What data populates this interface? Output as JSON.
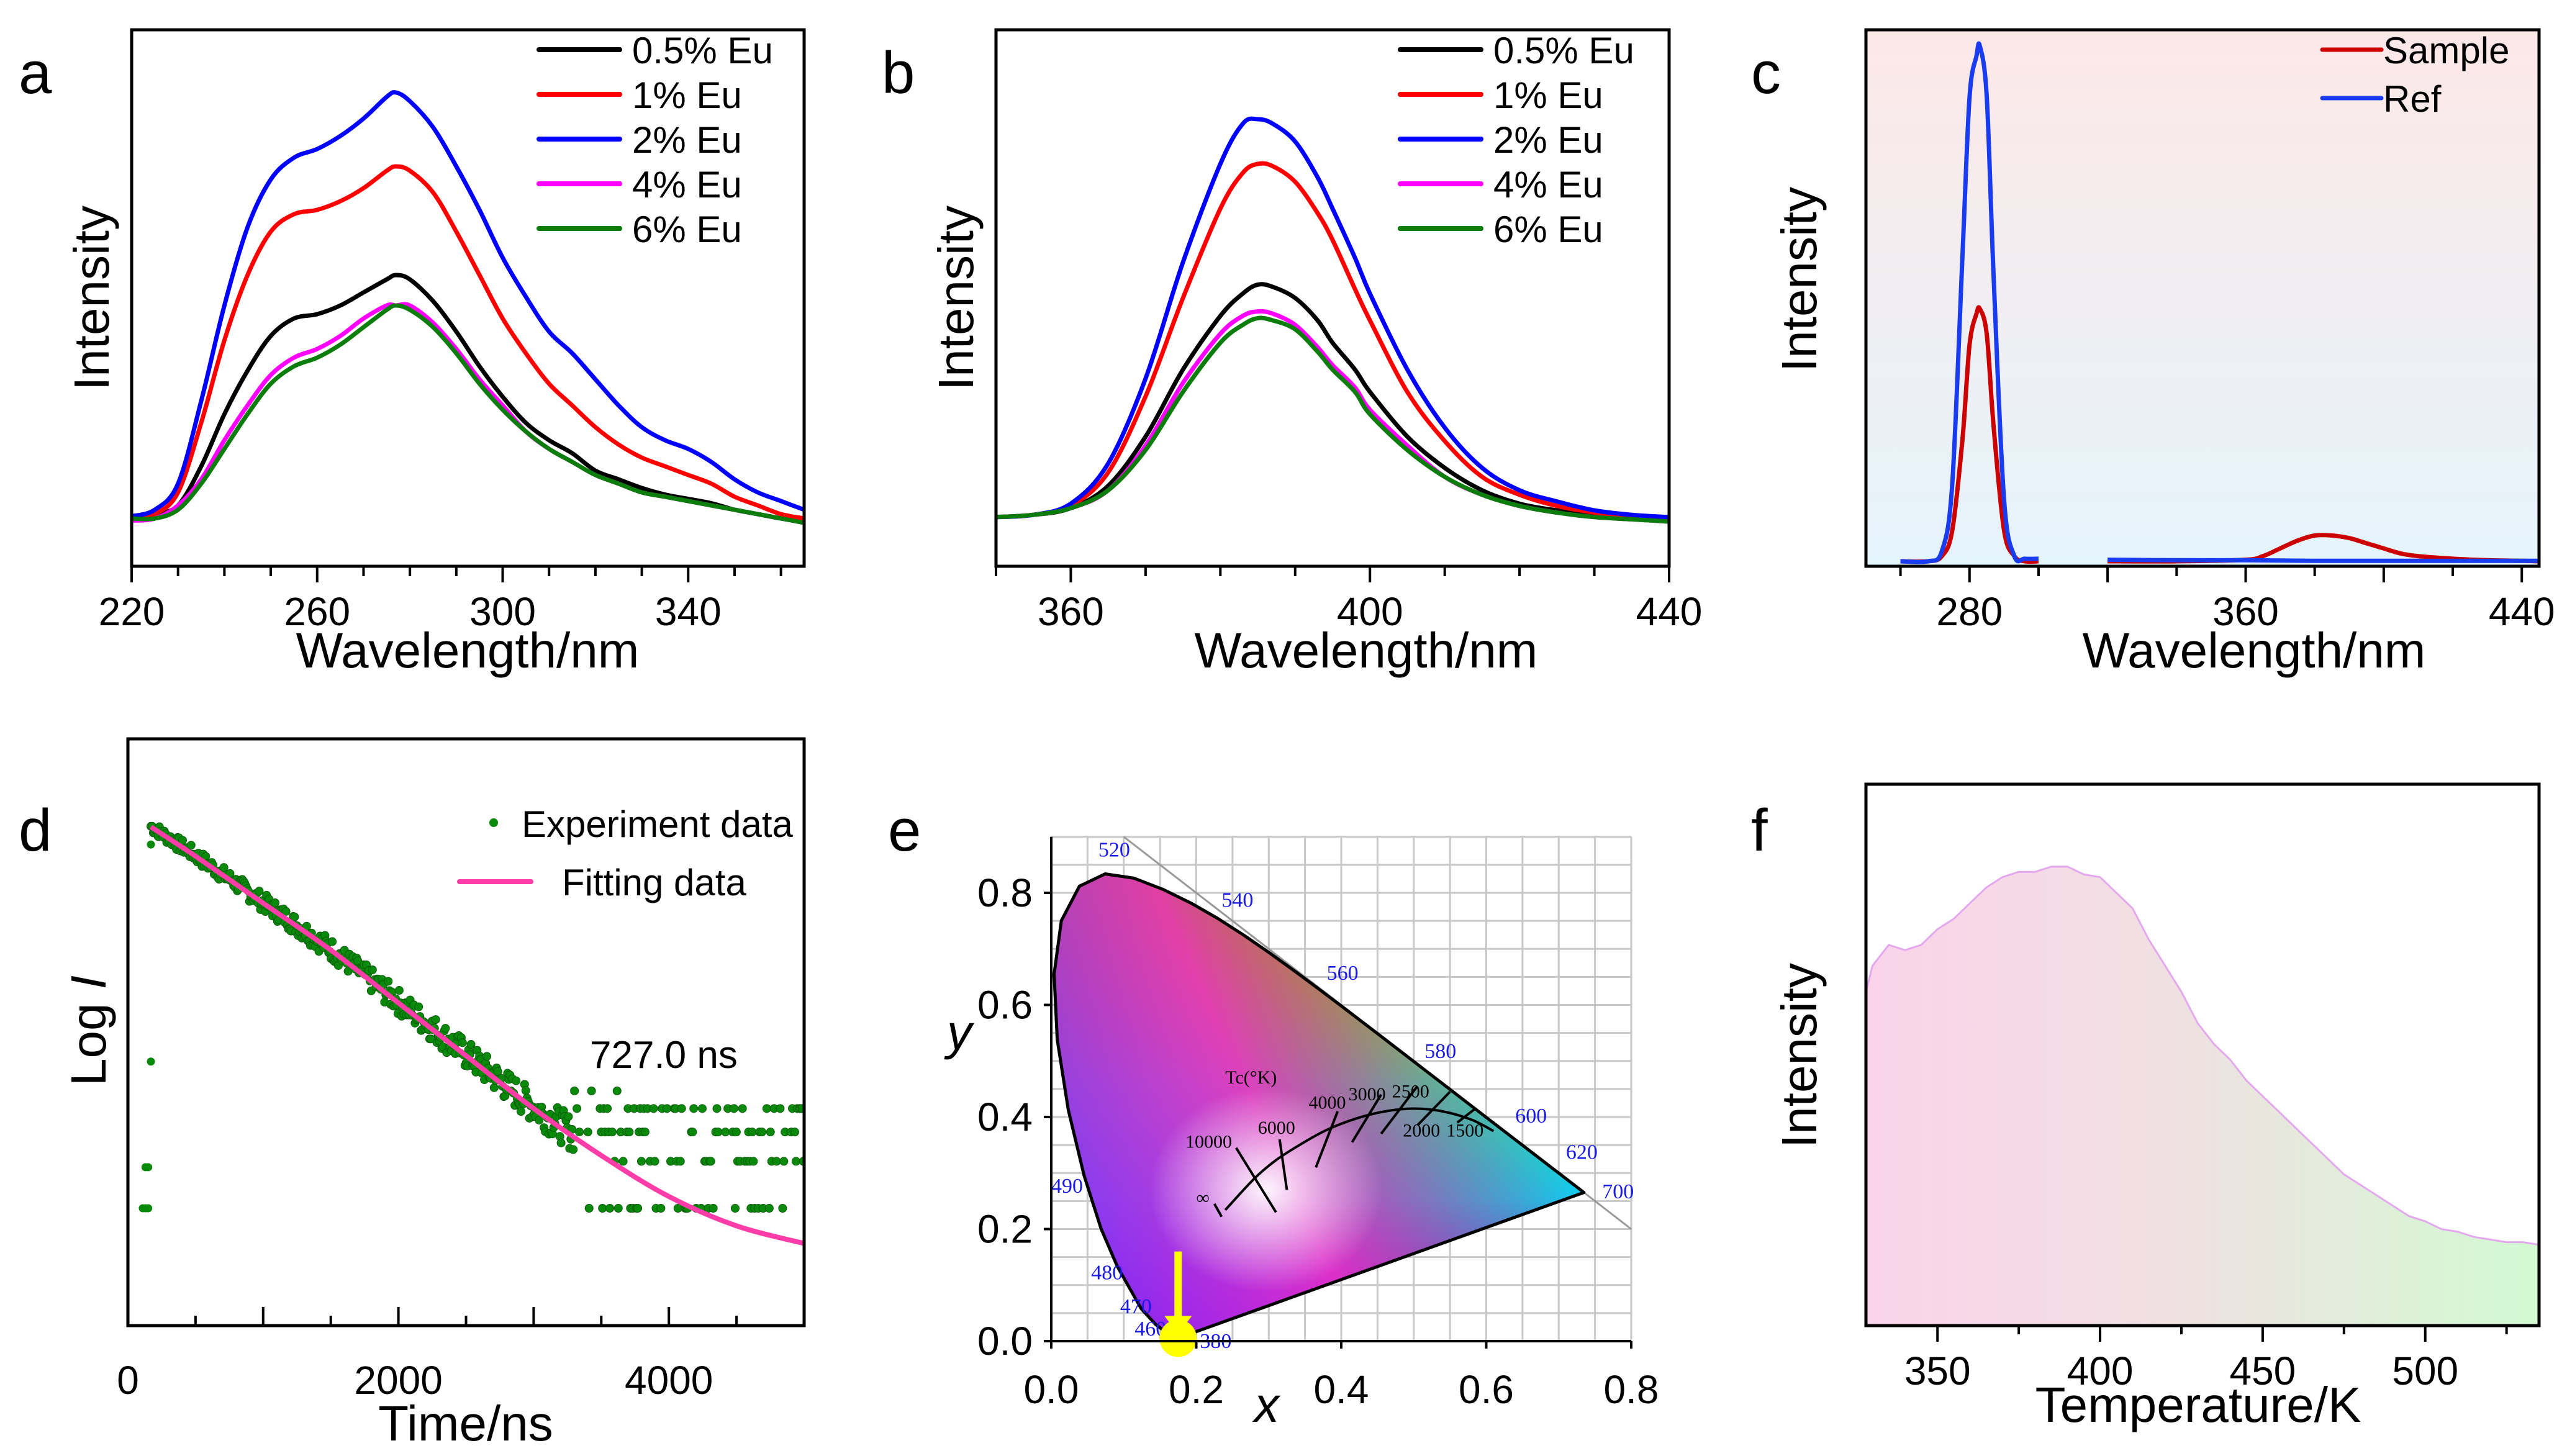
{
  "figure": {
    "panels": [
      "a",
      "b",
      "c",
      "d",
      "e",
      "f"
    ]
  },
  "chart_data": [
    {
      "id": "a",
      "panel_label": "a",
      "type": "line",
      "title": "",
      "xlabel": "Wavelength/nm",
      "ylabel": "Intensity",
      "xlim": [
        220,
        365
      ],
      "ylim": [
        0,
        1.0
      ],
      "xticks": [
        220,
        260,
        300,
        340
      ],
      "grid": false,
      "legend_position": "top-right",
      "x": [
        220,
        225,
        230,
        235,
        240,
        245,
        250,
        255,
        260,
        265,
        270,
        275,
        277,
        280,
        285,
        290,
        295,
        300,
        305,
        310,
        315,
        320,
        325,
        330,
        335,
        340,
        345,
        350,
        355,
        360,
        365
      ],
      "series": [
        {
          "name": "0.5% Eu",
          "color": "#000000",
          "values": [
            0.11,
            0.12,
            0.14,
            0.23,
            0.35,
            0.45,
            0.53,
            0.57,
            0.58,
            0.6,
            0.63,
            0.66,
            0.67,
            0.66,
            0.61,
            0.54,
            0.46,
            0.39,
            0.33,
            0.29,
            0.26,
            0.22,
            0.2,
            0.18,
            0.165,
            0.155,
            0.145,
            0.13,
            0.12,
            0.11,
            0.105
          ]
        },
        {
          "name": "1% Eu",
          "color": "#ff0000",
          "values": [
            0.11,
            0.12,
            0.17,
            0.33,
            0.52,
            0.67,
            0.77,
            0.81,
            0.82,
            0.84,
            0.87,
            0.91,
            0.92,
            0.91,
            0.86,
            0.77,
            0.67,
            0.57,
            0.49,
            0.42,
            0.37,
            0.32,
            0.28,
            0.25,
            0.23,
            0.21,
            0.19,
            0.16,
            0.14,
            0.12,
            0.11
          ]
        },
        {
          "name": "2% Eu",
          "color": "#0000ff",
          "values": [
            0.115,
            0.13,
            0.19,
            0.38,
            0.6,
            0.78,
            0.89,
            0.94,
            0.96,
            0.99,
            1.03,
            1.08,
            1.09,
            1.07,
            1.01,
            0.92,
            0.82,
            0.71,
            0.62,
            0.54,
            0.49,
            0.43,
            0.37,
            0.32,
            0.29,
            0.27,
            0.24,
            0.2,
            0.17,
            0.15,
            0.13
          ]
        },
        {
          "name": "4% Eu",
          "color": "#ff00ff",
          "values": [
            0.105,
            0.11,
            0.14,
            0.2,
            0.29,
            0.37,
            0.44,
            0.48,
            0.5,
            0.53,
            0.57,
            0.6,
            0.6,
            0.6,
            0.56,
            0.5,
            0.43,
            0.37,
            0.31,
            0.27,
            0.24,
            0.21,
            0.19,
            0.17,
            0.16,
            0.15,
            0.14,
            0.13,
            0.12,
            0.11,
            0.1
          ]
        },
        {
          "name": "6% Eu",
          "color": "#0a7d0a",
          "values": [
            0.11,
            0.11,
            0.13,
            0.19,
            0.27,
            0.35,
            0.42,
            0.46,
            0.48,
            0.51,
            0.55,
            0.59,
            0.6,
            0.59,
            0.55,
            0.49,
            0.42,
            0.36,
            0.31,
            0.27,
            0.24,
            0.21,
            0.19,
            0.17,
            0.16,
            0.15,
            0.14,
            0.13,
            0.12,
            0.11,
            0.1
          ]
        }
      ]
    },
    {
      "id": "b",
      "panel_label": "b",
      "type": "line",
      "title": "",
      "xlabel": "Wavelength/nm",
      "ylabel": "Intensity",
      "xlim": [
        350,
        440
      ],
      "ylim": [
        0,
        1.0
      ],
      "xticks": [
        360,
        400,
        440
      ],
      "grid": false,
      "legend_position": "top-right",
      "x": [
        350,
        355,
        360,
        365,
        370,
        375,
        380,
        383,
        385,
        387,
        390,
        393,
        395,
        398,
        400,
        405,
        410,
        415,
        420,
        425,
        430,
        435,
        440
      ],
      "series": [
        {
          "name": "0.5% Eu",
          "color": "#000000",
          "values": [
            0.11,
            0.115,
            0.13,
            0.18,
            0.29,
            0.44,
            0.56,
            0.61,
            0.63,
            0.625,
            0.6,
            0.55,
            0.5,
            0.44,
            0.39,
            0.29,
            0.22,
            0.17,
            0.14,
            0.125,
            0.115,
            0.11,
            0.105
          ]
        },
        {
          "name": "1% Eu",
          "color": "#ff0000",
          "values": [
            0.11,
            0.115,
            0.135,
            0.21,
            0.38,
            0.6,
            0.8,
            0.88,
            0.9,
            0.895,
            0.86,
            0.79,
            0.73,
            0.62,
            0.55,
            0.39,
            0.28,
            0.2,
            0.16,
            0.135,
            0.12,
            0.11,
            0.105
          ]
        },
        {
          "name": "2% Eu",
          "color": "#0000ff",
          "values": [
            0.11,
            0.115,
            0.14,
            0.23,
            0.42,
            0.68,
            0.9,
            0.99,
            1.0,
            0.99,
            0.95,
            0.87,
            0.8,
            0.69,
            0.61,
            0.44,
            0.31,
            0.22,
            0.17,
            0.145,
            0.125,
            0.115,
            0.11
          ]
        },
        {
          "name": "4% Eu",
          "color": "#ff00ff",
          "values": [
            0.11,
            0.115,
            0.13,
            0.17,
            0.27,
            0.41,
            0.52,
            0.56,
            0.57,
            0.565,
            0.54,
            0.49,
            0.45,
            0.4,
            0.35,
            0.27,
            0.2,
            0.16,
            0.135,
            0.12,
            0.11,
            0.105,
            0.1
          ]
        },
        {
          "name": "6% Eu",
          "color": "#0a7d0a",
          "values": [
            0.11,
            0.115,
            0.13,
            0.17,
            0.26,
            0.39,
            0.5,
            0.54,
            0.555,
            0.55,
            0.53,
            0.48,
            0.44,
            0.39,
            0.34,
            0.26,
            0.2,
            0.16,
            0.135,
            0.12,
            0.11,
            0.105,
            0.1
          ]
        }
      ]
    },
    {
      "id": "c",
      "panel_label": "c",
      "type": "line",
      "title": "",
      "xlabel": "Wavelength/nm",
      "ylabel": "Intensity",
      "xlim_segments": [
        [
          250,
          300
        ],
        [
          320,
          445
        ]
      ],
      "ylim": [
        0,
        1.0
      ],
      "xticks": [
        280,
        360,
        440
      ],
      "grid": false,
      "legend_position": "top-right",
      "background_gradient": [
        "#fde8e8",
        "#e4f4fb"
      ],
      "series": [
        {
          "name": "Sample",
          "color": "#cc0000",
          "x": [
            260,
            268,
            272,
            275,
            278,
            280,
            282,
            283,
            285,
            287,
            290,
            293,
            296,
            300,
            320,
            340,
            360,
            365,
            370,
            375,
            380,
            385,
            390,
            395,
            400,
            405,
            410,
            420,
            430,
            440,
            445
          ],
          "values": [
            0.0,
            0.0,
            0.01,
            0.06,
            0.24,
            0.42,
            0.48,
            0.49,
            0.44,
            0.26,
            0.06,
            0.01,
            0.0,
            0.0,
            0.0,
            0.0,
            0.003,
            0.01,
            0.025,
            0.04,
            0.05,
            0.05,
            0.045,
            0.035,
            0.025,
            0.015,
            0.01,
            0.005,
            0.002,
            0.001,
            0.0
          ]
        },
        {
          "name": "Ref",
          "color": "#1a3cf0",
          "x": [
            260,
            268,
            272,
            275,
            278,
            280,
            282,
            283,
            285,
            287,
            290,
            293,
            296,
            300,
            320,
            340,
            360,
            380,
            400,
            420,
            440,
            445
          ],
          "values": [
            0.0,
            0.0,
            0.02,
            0.15,
            0.6,
            0.9,
            0.98,
            1.0,
            0.9,
            0.55,
            0.12,
            0.01,
            0.005,
            0.005,
            0.003,
            0.002,
            0.002,
            0.001,
            0.001,
            0.001,
            0.001,
            0.001
          ]
        }
      ]
    },
    {
      "id": "d",
      "panel_label": "d",
      "type": "scatter",
      "title": "",
      "xlabel": "Time/ns",
      "ylabel": "Log I",
      "xlim": [
        0,
        5000
      ],
      "ylim": [
        0,
        1.0
      ],
      "xticks": [
        0,
        2000,
        4000
      ],
      "grid": false,
      "legend_position": "top-right",
      "annotation": "727.0 ns",
      "series": [
        {
          "name": "Experiment data",
          "color": "#0a8a0a",
          "kind": "scatter"
        },
        {
          "name": "Fitting data",
          "color": "#ff3da8",
          "kind": "line",
          "x": [
            170,
            500,
            1000,
            1500,
            2000,
            2500,
            3000,
            3500,
            4000,
            4500,
            5000
          ],
          "values": [
            0.85,
            0.8,
            0.72,
            0.64,
            0.55,
            0.46,
            0.37,
            0.29,
            0.22,
            0.17,
            0.14
          ]
        }
      ],
      "discrete_levels": [
        0.44,
        0.42,
        0.4,
        0.37,
        0.33,
        0.28,
        0.2
      ]
    },
    {
      "id": "e",
      "panel_label": "e",
      "type": "scatter",
      "title": "",
      "xlabel": "x",
      "ylabel": "y",
      "xlim": [
        0.0,
        0.8
      ],
      "ylim": [
        0.0,
        0.9
      ],
      "xticks": [
        0.0,
        0.2,
        0.4,
        0.6,
        0.8
      ],
      "yticks": [
        0.0,
        0.2,
        0.4,
        0.6,
        0.8
      ],
      "grid": true,
      "cie_point": {
        "x": 0.175,
        "y": 0.005,
        "color": "#ffff00"
      },
      "wavelength_labels": [
        "380",
        "460",
        "470",
        "480",
        "490",
        "520",
        "540",
        "560",
        "580",
        "600",
        "620",
        "700"
      ],
      "cct_title": "Tc(°K)",
      "cct_labels": [
        "∞",
        "10000",
        "6000",
        "4000",
        "3000",
        "2500",
        "2000",
        "1500"
      ]
    },
    {
      "id": "f",
      "panel_label": "f",
      "type": "area",
      "title": "",
      "xlabel": "Temperature/K",
      "ylabel": "Intensity",
      "xlim": [
        328,
        535
      ],
      "ylim": [
        0,
        1.0
      ],
      "xticks": [
        350,
        400,
        450,
        500
      ],
      "grid": false,
      "gradient": [
        "#fbd3ea",
        "#d2fad2"
      ],
      "x": [
        328,
        330,
        335,
        340,
        345,
        350,
        355,
        360,
        365,
        370,
        375,
        380,
        385,
        390,
        395,
        400,
        405,
        410,
        415,
        420,
        425,
        430,
        435,
        440,
        445,
        450,
        455,
        460,
        465,
        470,
        475,
        480,
        485,
        490,
        495,
        500,
        505,
        510,
        515,
        520,
        525,
        530,
        535
      ],
      "values": [
        0.64,
        0.69,
        0.73,
        0.72,
        0.73,
        0.76,
        0.78,
        0.81,
        0.84,
        0.86,
        0.87,
        0.87,
        0.88,
        0.88,
        0.865,
        0.86,
        0.83,
        0.8,
        0.74,
        0.69,
        0.64,
        0.58,
        0.54,
        0.51,
        0.47,
        0.44,
        0.41,
        0.38,
        0.35,
        0.32,
        0.29,
        0.27,
        0.25,
        0.23,
        0.21,
        0.2,
        0.185,
        0.18,
        0.17,
        0.165,
        0.16,
        0.16,
        0.155
      ]
    }
  ]
}
